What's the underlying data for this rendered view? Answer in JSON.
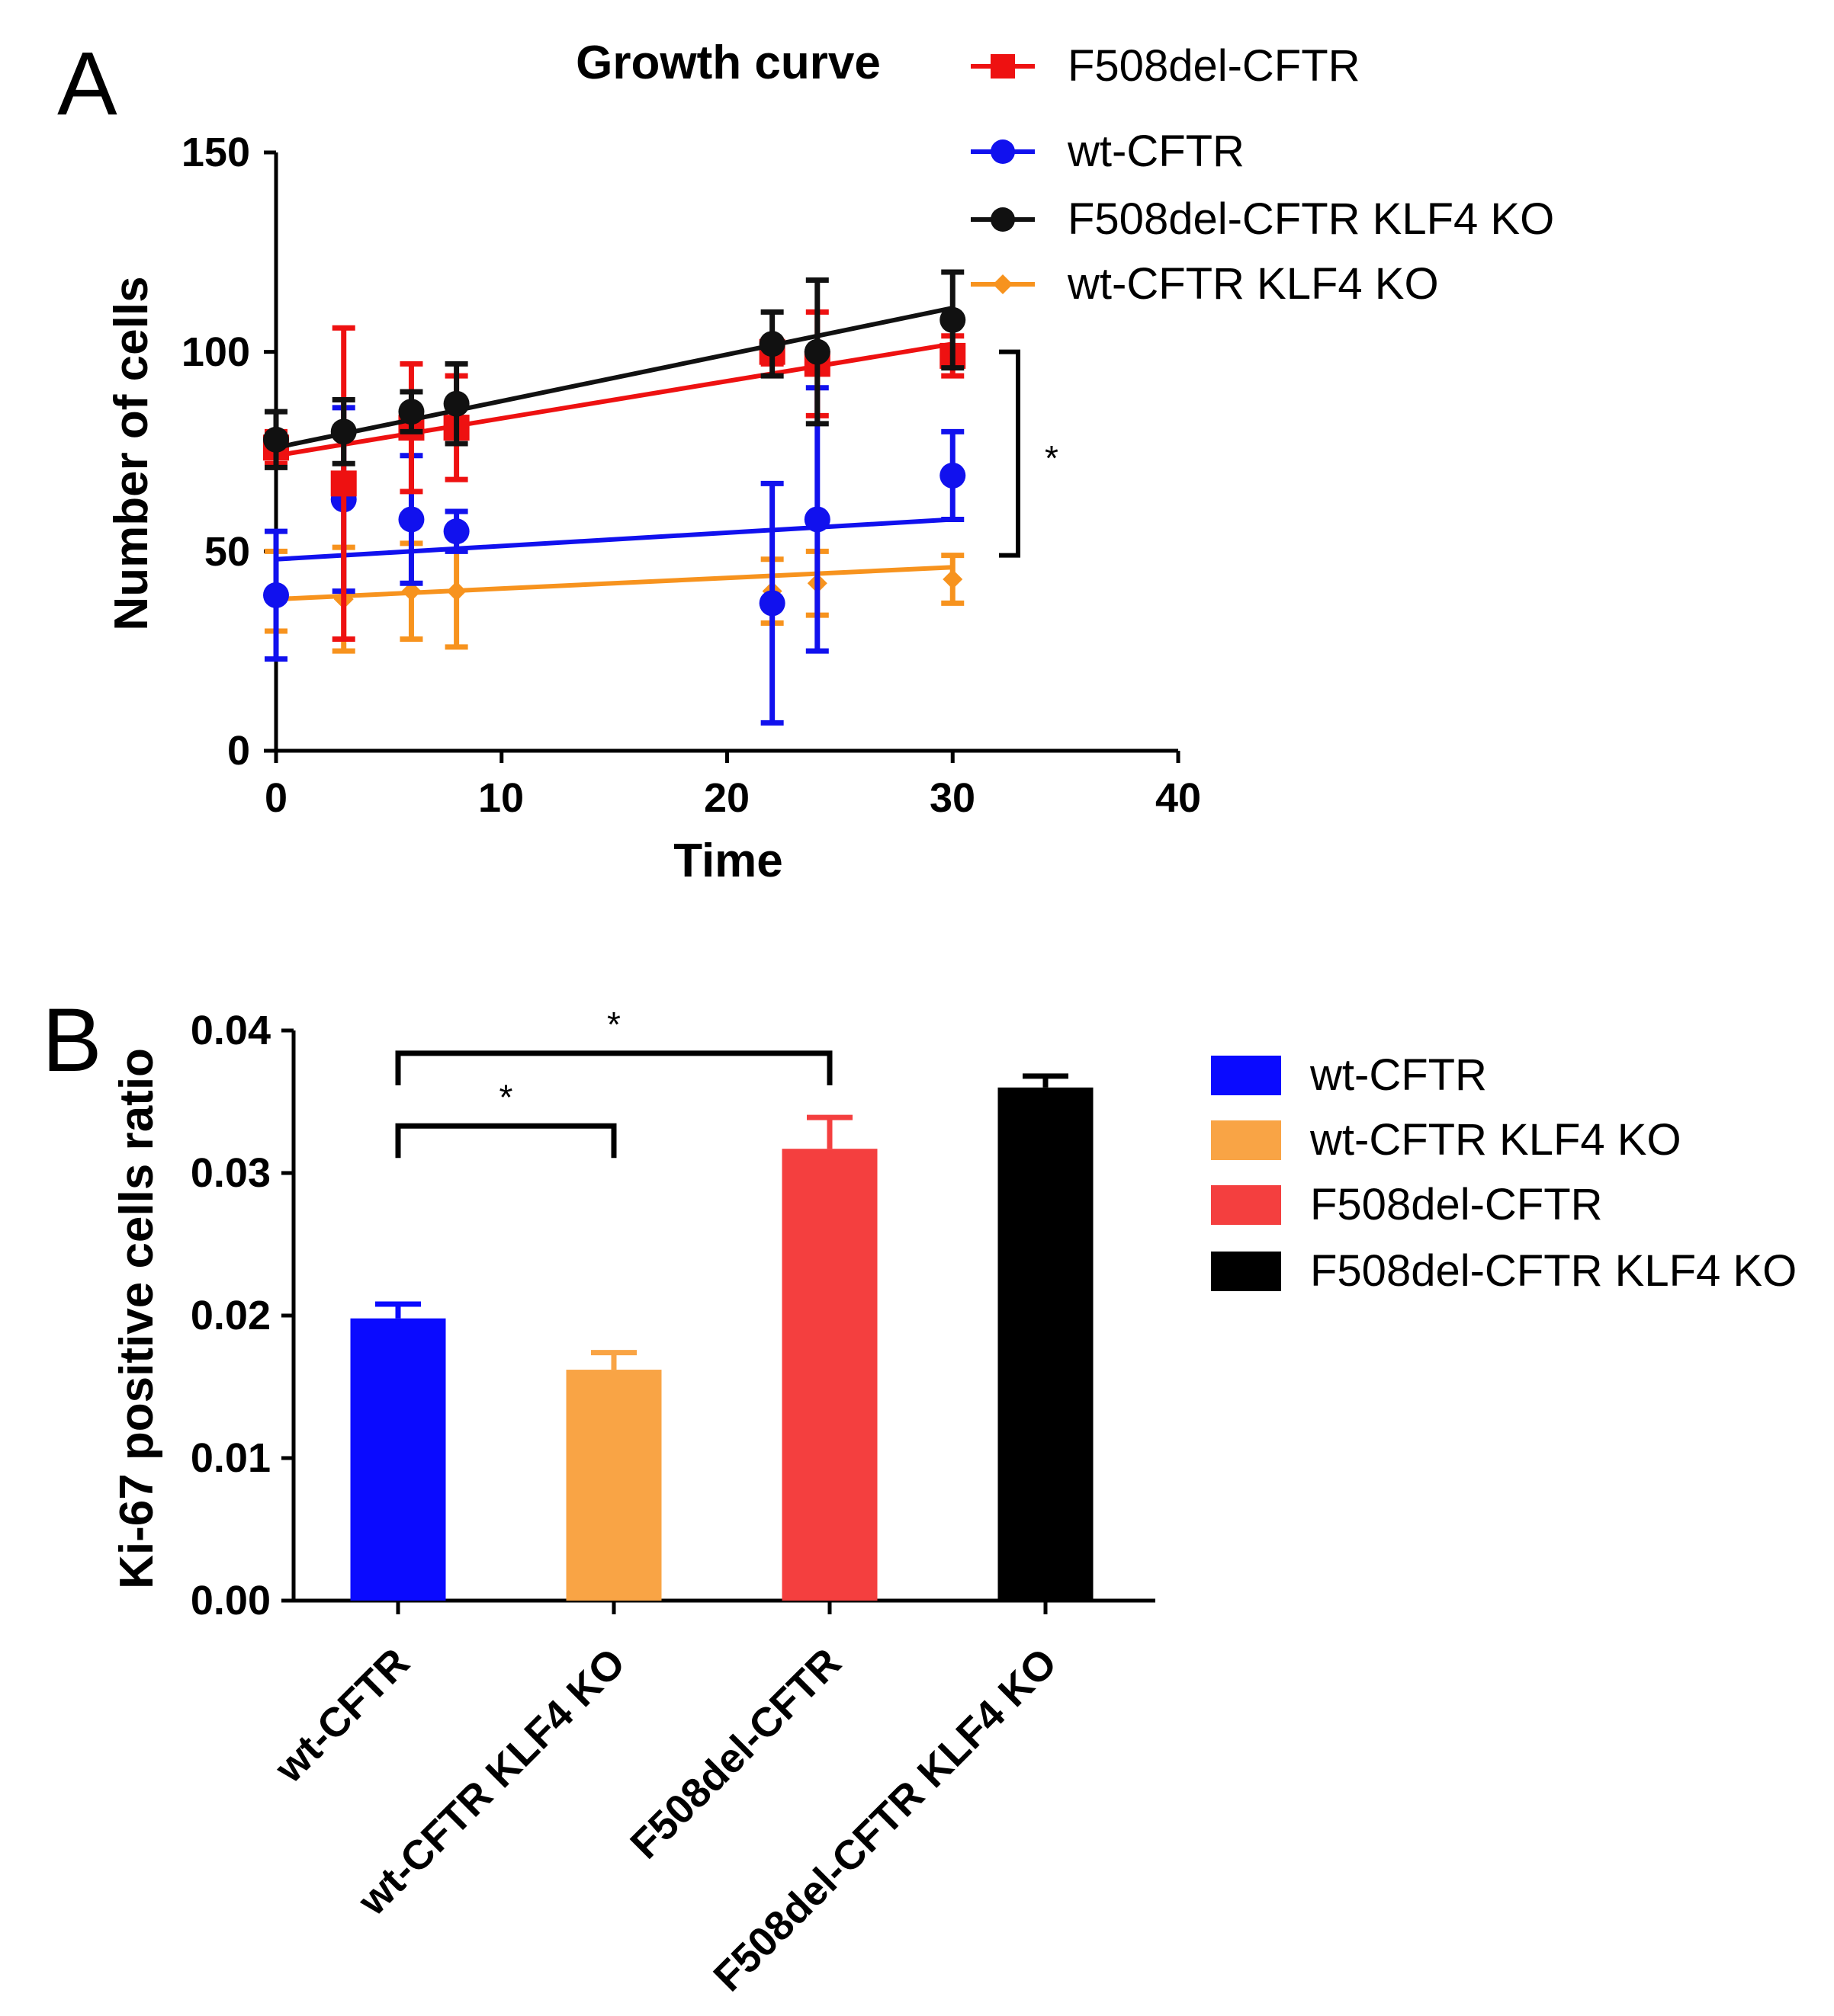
{
  "panel_labels": [
    "A",
    "B"
  ],
  "chart_data": [
    {
      "type": "line",
      "panel": "A",
      "title": "Growth curve",
      "xlabel": "Time",
      "ylabel": "Number of cells",
      "xlim": [
        0,
        40
      ],
      "ylim": [
        0,
        150
      ],
      "xticks": [
        0,
        10,
        20,
        30,
        40
      ],
      "yticks": [
        0,
        50,
        100,
        150
      ],
      "x_tick_labels": [
        "0",
        "10",
        "20",
        "30",
        "40"
      ],
      "y_tick_labels": [
        "0",
        "50",
        "100",
        "150"
      ],
      "legend_position": "top-right",
      "grid": false,
      "series": [
        {
          "name": "F508del-CFTR",
          "color": "#ee1111",
          "marker": "square",
          "x": [
            0,
            3,
            6,
            8,
            22,
            24,
            30
          ],
          "y": [
            76,
            67,
            81,
            81,
            100,
            97,
            99
          ],
          "err": [
            4,
            39,
            16,
            13,
            3,
            13,
            5
          ],
          "fit": [
            [
              0,
              74
            ],
            [
              30,
              102
            ]
          ]
        },
        {
          "name": "wt-CFTR",
          "color": "#1111ee",
          "marker": "circle",
          "x": [
            0,
            3,
            6,
            8,
            22,
            24,
            30
          ],
          "y": [
            39,
            63,
            58,
            55,
            37,
            58,
            69
          ],
          "err": [
            16,
            23,
            16,
            5,
            30,
            33,
            11
          ],
          "fit": [
            [
              0,
              48
            ],
            [
              30,
              58
            ]
          ]
        },
        {
          "name": "F508del-CFTR KLF4 KO",
          "color": "#111111",
          "marker": "circle",
          "x": [
            0,
            3,
            6,
            8,
            22,
            24,
            30
          ],
          "y": [
            78,
            80,
            85,
            87,
            102,
            100,
            108
          ],
          "err": [
            7,
            8,
            5,
            10,
            8,
            18,
            12
          ],
          "fit": [
            [
              0,
              76
            ],
            [
              30,
              111
            ]
          ]
        },
        {
          "name": "wt-CFTR KLF4 KO",
          "color": "#f7931e",
          "marker": "diamond",
          "x": [
            0,
            3,
            6,
            8,
            22,
            24,
            30
          ],
          "y": [
            40,
            38,
            40,
            40,
            40,
            42,
            43
          ],
          "err": [
            10,
            13,
            12,
            14,
            8,
            8,
            6
          ],
          "fit": [
            [
              0,
              38
            ],
            [
              30,
              46
            ]
          ]
        }
      ],
      "significance": [
        {
          "label": "*",
          "between": [
            49,
            100
          ]
        }
      ]
    },
    {
      "type": "bar",
      "panel": "B",
      "ylabel": "Ki-67 positive cells ratio",
      "ylim": [
        0,
        0.04
      ],
      "yticks": [
        0,
        0.01,
        0.02,
        0.03,
        0.04
      ],
      "y_tick_labels": [
        "0.00",
        "0.01",
        "0.02",
        "0.03",
        "0.04"
      ],
      "categories": [
        "wt-CFTR",
        "wt-CFTR KLF4 KO",
        "F508del-CFTR",
        "F508del-CFTR KLF4 KO"
      ],
      "values": [
        0.0198,
        0.0162,
        0.0317,
        0.036
      ],
      "err": [
        0.001,
        0.0012,
        0.0022,
        0.0008
      ],
      "colors": [
        "#0a0aff",
        "#f9a445",
        "#f43f3f",
        "#000000"
      ],
      "legend_position": "right",
      "grid": false,
      "legend": [
        {
          "label": "wt-CFTR",
          "color": "#0a0aff",
          "text_color": "#000000"
        },
        {
          "label": "wt-CFTR KLF4 KO",
          "color": "#f9a445",
          "text_color": "#f9a445"
        },
        {
          "label": "F508del-CFTR",
          "color": "#f43f3f",
          "text_color": "#f43f3f"
        },
        {
          "label": "F508del-CFTR KLF4 KO",
          "color": "#000000",
          "text_color": "#000000"
        }
      ],
      "significance": [
        {
          "label": "*",
          "from": 0,
          "to": 2,
          "level": 0.0384
        },
        {
          "label": "*",
          "from": 0,
          "to": 1,
          "level": 0.0333
        }
      ]
    }
  ]
}
